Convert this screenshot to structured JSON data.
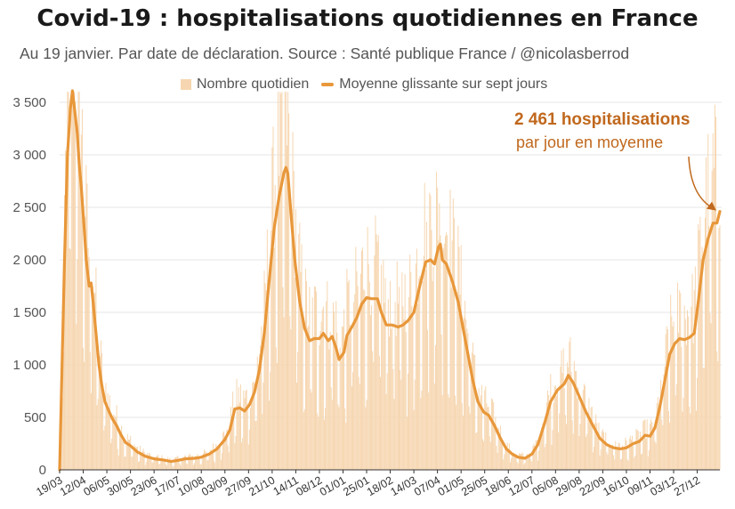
{
  "chart_data": {
    "type": "bar+line",
    "title": "Covid-19 : hospitalisations quotidiennes en France",
    "subtitle": "Au 19 janvier. Par date de déclaration. Source : Santé publique France / @nicolasberrod",
    "ylim": [
      0,
      3600
    ],
    "yticks": [
      0,
      500,
      1000,
      1500,
      2000,
      2500,
      3000,
      3500
    ],
    "ytick_labels": [
      "0",
      "500",
      "1 000",
      "1 500",
      "2 000",
      "2 500",
      "3 000",
      "3 500"
    ],
    "x_start": "2020-03-19",
    "x_end": "2022-01-19",
    "xtick_labels": [
      "19/03",
      "12/04",
      "06/05",
      "30/05",
      "23/06",
      "17/07",
      "10/08",
      "03/09",
      "27/09",
      "21/10",
      "14/11",
      "08/12",
      "01/01",
      "25/01",
      "18/02",
      "14/03",
      "07/04",
      "01/05",
      "25/05",
      "18/06",
      "12/07",
      "05/08",
      "29/08",
      "22/09",
      "16/10",
      "09/11",
      "03/12",
      "27/12"
    ],
    "legend": {
      "position": "top-center",
      "daily_label": "Nombre quotidien",
      "avg_label": "Moyenne glissante sur sept jours"
    },
    "colors": {
      "daily": "#f6d6b0",
      "avg": "#e8973a",
      "annotation": "#c0681d"
    },
    "series": [
      {
        "name": "Moyenne glissante sur sept jours",
        "points": [
          [
            "2020-03-19",
            0
          ],
          [
            "2020-03-21",
            800
          ],
          [
            "2020-03-24",
            2000
          ],
          [
            "2020-03-27",
            3000
          ],
          [
            "2020-03-30",
            3450
          ],
          [
            "2020-04-01",
            3610
          ],
          [
            "2020-04-03",
            3450
          ],
          [
            "2020-04-06",
            3200
          ],
          [
            "2020-04-08",
            2900
          ],
          [
            "2020-04-10",
            2700
          ],
          [
            "2020-04-13",
            2300
          ],
          [
            "2020-04-15",
            2000
          ],
          [
            "2020-04-18",
            1750
          ],
          [
            "2020-04-20",
            1780
          ],
          [
            "2020-04-22",
            1600
          ],
          [
            "2020-04-25",
            1300
          ],
          [
            "2020-04-28",
            1000
          ],
          [
            "2020-05-01",
            800
          ],
          [
            "2020-05-04",
            650
          ],
          [
            "2020-05-08",
            560
          ],
          [
            "2020-05-12",
            480
          ],
          [
            "2020-05-16",
            420
          ],
          [
            "2020-05-20",
            340
          ],
          [
            "2020-05-25",
            260
          ],
          [
            "2020-05-30",
            230
          ],
          [
            "2020-06-06",
            170
          ],
          [
            "2020-06-14",
            130
          ],
          [
            "2020-06-23",
            105
          ],
          [
            "2020-07-02",
            95
          ],
          [
            "2020-07-10",
            80
          ],
          [
            "2020-07-17",
            90
          ],
          [
            "2020-07-25",
            105
          ],
          [
            "2020-08-03",
            110
          ],
          [
            "2020-08-10",
            120
          ],
          [
            "2020-08-18",
            150
          ],
          [
            "2020-08-26",
            200
          ],
          [
            "2020-09-03",
            290
          ],
          [
            "2020-09-08",
            380
          ],
          [
            "2020-09-13",
            580
          ],
          [
            "2020-09-18",
            590
          ],
          [
            "2020-09-23",
            560
          ],
          [
            "2020-09-28",
            620
          ],
          [
            "2020-10-03",
            740
          ],
          [
            "2020-10-08",
            950
          ],
          [
            "2020-10-13",
            1300
          ],
          [
            "2020-10-18",
            1800
          ],
          [
            "2020-10-23",
            2300
          ],
          [
            "2020-10-28",
            2600
          ],
          [
            "2020-11-02",
            2830
          ],
          [
            "2020-11-04",
            2880
          ],
          [
            "2020-11-06",
            2820
          ],
          [
            "2020-11-09",
            2450
          ],
          [
            "2020-11-13",
            2000
          ],
          [
            "2020-11-18",
            1600
          ],
          [
            "2020-11-23",
            1350
          ],
          [
            "2020-11-28",
            1230
          ],
          [
            "2020-12-03",
            1250
          ],
          [
            "2020-12-08",
            1250
          ],
          [
            "2020-12-12",
            1300
          ],
          [
            "2020-12-17",
            1230
          ],
          [
            "2020-12-21",
            1270
          ],
          [
            "2020-12-25",
            1160
          ],
          [
            "2020-12-28",
            1050
          ],
          [
            "2021-01-02",
            1120
          ],
          [
            "2021-01-05",
            1280
          ],
          [
            "2021-01-10",
            1360
          ],
          [
            "2021-01-15",
            1450
          ],
          [
            "2021-01-20",
            1580
          ],
          [
            "2021-01-25",
            1640
          ],
          [
            "2021-01-30",
            1630
          ],
          [
            "2021-02-05",
            1630
          ],
          [
            "2021-02-09",
            1500
          ],
          [
            "2021-02-14",
            1380
          ],
          [
            "2021-02-20",
            1380
          ],
          [
            "2021-02-26",
            1360
          ],
          [
            "2021-03-03",
            1380
          ],
          [
            "2021-03-08",
            1420
          ],
          [
            "2021-03-14",
            1500
          ],
          [
            "2021-03-20",
            1750
          ],
          [
            "2021-03-26",
            1980
          ],
          [
            "2021-03-31",
            2000
          ],
          [
            "2021-04-04",
            1960
          ],
          [
            "2021-04-08",
            2120
          ],
          [
            "2021-04-10",
            2150
          ],
          [
            "2021-04-12",
            2000
          ],
          [
            "2021-04-16",
            1960
          ],
          [
            "2021-04-22",
            1800
          ],
          [
            "2021-04-28",
            1600
          ],
          [
            "2021-05-03",
            1350
          ],
          [
            "2021-05-08",
            1100
          ],
          [
            "2021-05-13",
            850
          ],
          [
            "2021-05-18",
            650
          ],
          [
            "2021-05-24",
            550
          ],
          [
            "2021-05-29",
            520
          ],
          [
            "2021-06-04",
            420
          ],
          [
            "2021-06-10",
            300
          ],
          [
            "2021-06-16",
            200
          ],
          [
            "2021-06-22",
            150
          ],
          [
            "2021-06-28",
            120
          ],
          [
            "2021-07-05",
            110
          ],
          [
            "2021-07-12",
            150
          ],
          [
            "2021-07-18",
            240
          ],
          [
            "2021-07-25",
            450
          ],
          [
            "2021-07-31",
            650
          ],
          [
            "2021-08-07",
            760
          ],
          [
            "2021-08-14",
            820
          ],
          [
            "2021-08-18",
            900
          ],
          [
            "2021-08-23",
            830
          ],
          [
            "2021-08-29",
            700
          ],
          [
            "2021-09-05",
            550
          ],
          [
            "2021-09-12",
            420
          ],
          [
            "2021-09-19",
            300
          ],
          [
            "2021-09-26",
            240
          ],
          [
            "2021-10-03",
            210
          ],
          [
            "2021-10-10",
            200
          ],
          [
            "2021-10-16",
            210
          ],
          [
            "2021-10-23",
            250
          ],
          [
            "2021-10-29",
            270
          ],
          [
            "2021-11-04",
            330
          ],
          [
            "2021-11-09",
            320
          ],
          [
            "2021-11-14",
            400
          ],
          [
            "2021-11-19",
            600
          ],
          [
            "2021-11-24",
            850
          ],
          [
            "2021-11-29",
            1100
          ],
          [
            "2021-12-04",
            1200
          ],
          [
            "2021-12-09",
            1250
          ],
          [
            "2021-12-14",
            1240
          ],
          [
            "2021-12-19",
            1260
          ],
          [
            "2021-12-24",
            1300
          ],
          [
            "2021-12-28",
            1600
          ],
          [
            "2022-01-02",
            2000
          ],
          [
            "2022-01-07",
            2200
          ],
          [
            "2022-01-12",
            2350
          ],
          [
            "2022-01-16",
            2350
          ],
          [
            "2022-01-19",
            2461
          ]
        ]
      }
    ],
    "annotation": {
      "value_text": "2 461 hospitalisations",
      "detail_text": "par jour en moyenne"
    }
  }
}
